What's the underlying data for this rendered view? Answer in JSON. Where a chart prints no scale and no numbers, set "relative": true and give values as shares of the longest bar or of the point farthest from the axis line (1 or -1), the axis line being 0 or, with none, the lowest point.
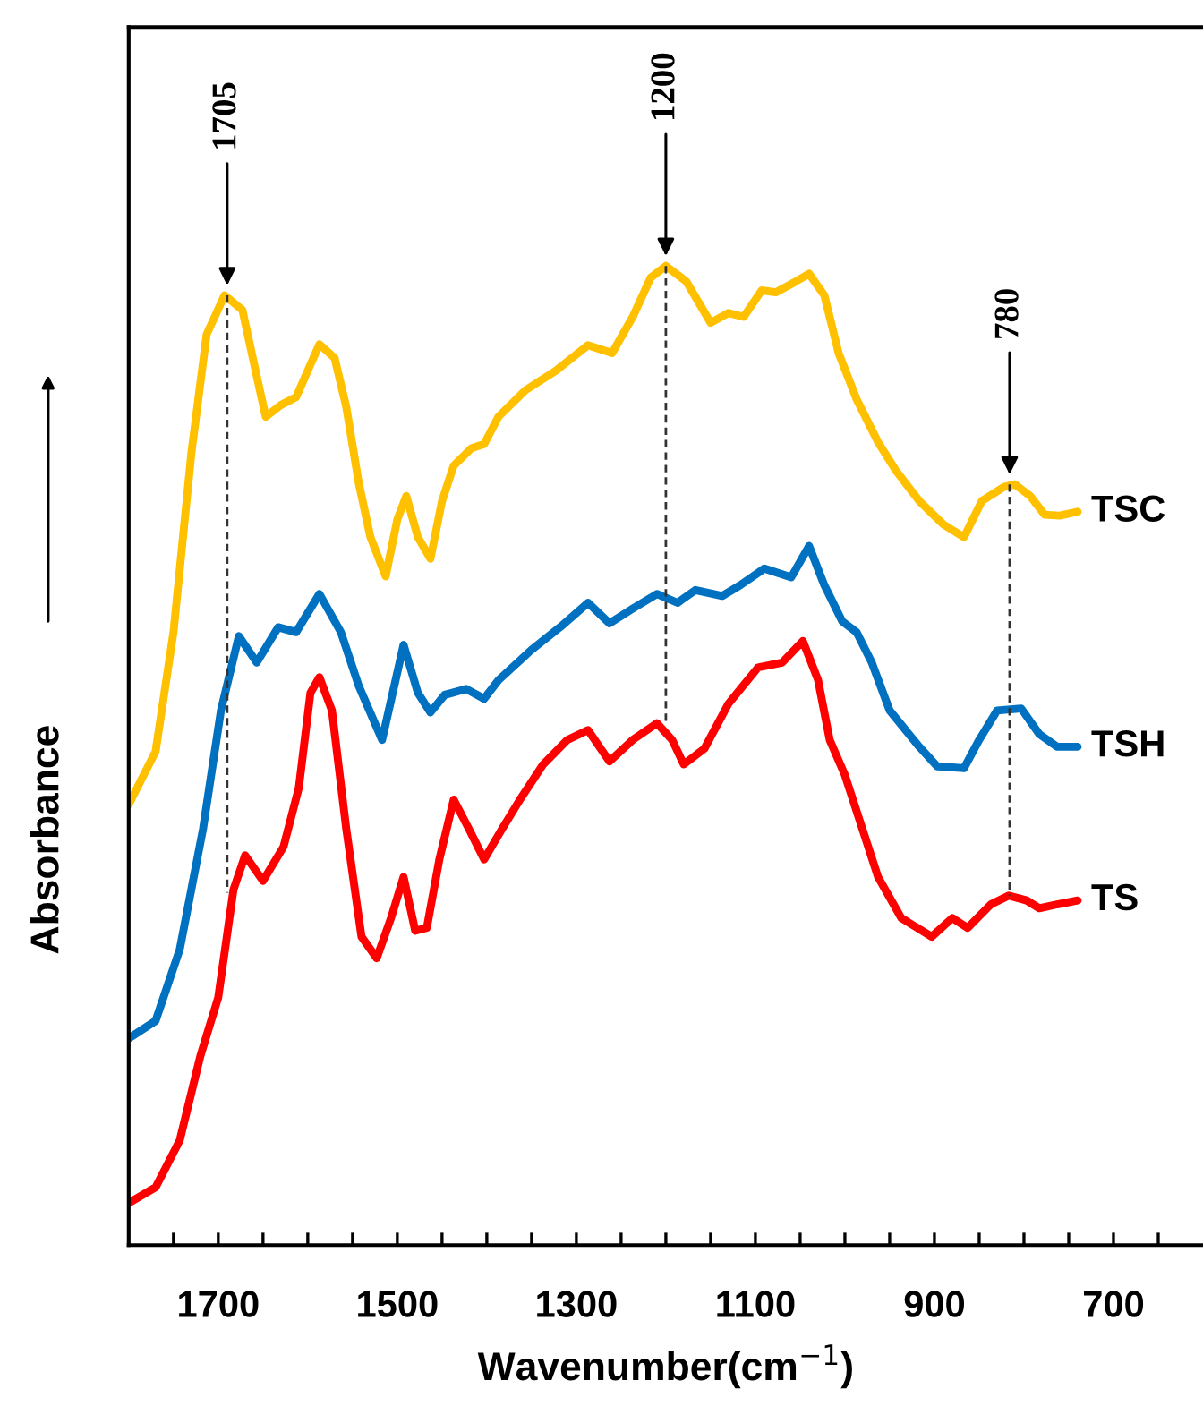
{
  "chart_data": {
    "type": "line",
    "relative": true,
    "xlabel": "Wavenumber(cm$^{−1}$)",
    "ylabel": "Absorbance",
    "xlim": [
      1800,
      600
    ],
    "xticks": [
      {
        "value": 1750,
        "label": null
      },
      {
        "value": 1700,
        "label": "1700"
      },
      {
        "value": 1650,
        "label": null
      },
      {
        "value": 1600,
        "label": null
      },
      {
        "value": 1550,
        "label": null
      },
      {
        "value": 1500,
        "label": "1500"
      },
      {
        "value": 1450,
        "label": null
      },
      {
        "value": 1400,
        "label": null
      },
      {
        "value": 1350,
        "label": null
      },
      {
        "value": 1300,
        "label": "1300"
      },
      {
        "value": 1250,
        "label": null
      },
      {
        "value": 1200,
        "label": null
      },
      {
        "value": 1150,
        "label": null
      },
      {
        "value": 1100,
        "label": "1100"
      },
      {
        "value": 1050,
        "label": null
      },
      {
        "value": 1000,
        "label": null
      },
      {
        "value": 950,
        "label": null
      },
      {
        "value": 900,
        "label": "900"
      },
      {
        "value": 850,
        "label": null
      },
      {
        "value": 800,
        "label": null
      },
      {
        "value": 750,
        "label": null
      },
      {
        "value": 700,
        "label": "700"
      },
      {
        "value": 650,
        "label": null
      }
    ],
    "tick_labels": "x",
    "grid": false,
    "legend": false,
    "marker": "none",
    "line_style": "solid",
    "annotations": [
      {
        "text": "1705",
        "x": 1690,
        "y": 0.97
      },
      {
        "text": "1200",
        "x": 1200,
        "y": 1.0
      },
      {
        "text": "780",
        "x": 816,
        "y": 0.777
      }
    ],
    "series": [
      {
        "name": "TSC",
        "color": "#ffc000",
        "x": [
          1800,
          1770,
          1750,
          1730,
          1713,
          1693,
          1673,
          1660,
          1647,
          1630,
          1613,
          1600,
          1587,
          1570,
          1557,
          1543,
          1530,
          1513,
          1500,
          1490,
          1477,
          1463,
          1450,
          1437,
          1417,
          1403,
          1387,
          1357,
          1323,
          1287,
          1260,
          1237,
          1217,
          1200,
          1177,
          1150,
          1130,
          1113,
          1093,
          1077,
          1057,
          1040,
          1023,
          1007,
          987,
          963,
          943,
          917,
          890,
          867,
          847,
          823,
          810,
          793,
          777,
          760,
          740
        ],
        "values": [
          0.45,
          0.504,
          0.626,
          0.809,
          0.93,
          0.97,
          0.955,
          0.9,
          0.846,
          0.858,
          0.866,
          0.893,
          0.92,
          0.906,
          0.856,
          0.778,
          0.723,
          0.683,
          0.741,
          0.765,
          0.723,
          0.701,
          0.76,
          0.796,
          0.814,
          0.818,
          0.846,
          0.873,
          0.893,
          0.919,
          0.911,
          0.948,
          0.988,
          1.0,
          0.984,
          0.942,
          0.952,
          0.948,
          0.975,
          0.973,
          0.983,
          0.992,
          0.97,
          0.911,
          0.864,
          0.82,
          0.791,
          0.76,
          0.736,
          0.723,
          0.76,
          0.774,
          0.777,
          0.765,
          0.746,
          0.745,
          0.749
        ]
      },
      {
        "name": "TSH",
        "color": "#0070c0",
        "x": [
          1800,
          1770,
          1743,
          1717,
          1697,
          1677,
          1657,
          1633,
          1613,
          1587,
          1563,
          1543,
          1517,
          1493,
          1477,
          1463,
          1447,
          1423,
          1403,
          1387,
          1350,
          1317,
          1287,
          1263,
          1237,
          1210,
          1187,
          1167,
          1137,
          1117,
          1090,
          1060,
          1040,
          1023,
          1003,
          987,
          970,
          950,
          917,
          897,
          867,
          850,
          830,
          803,
          783,
          763,
          740
        ],
        "values": [
          0.211,
          0.229,
          0.302,
          0.425,
          0.546,
          0.622,
          0.595,
          0.631,
          0.626,
          0.665,
          0.626,
          0.571,
          0.516,
          0.613,
          0.564,
          0.544,
          0.562,
          0.568,
          0.558,
          0.577,
          0.608,
          0.632,
          0.656,
          0.635,
          0.65,
          0.665,
          0.656,
          0.669,
          0.663,
          0.674,
          0.691,
          0.682,
          0.714,
          0.674,
          0.637,
          0.626,
          0.595,
          0.546,
          0.509,
          0.489,
          0.487,
          0.516,
          0.546,
          0.548,
          0.522,
          0.509,
          0.509
        ]
      },
      {
        "name": "TS",
        "color": "#ff0000",
        "x": [
          1800,
          1770,
          1743,
          1720,
          1700,
          1683,
          1670,
          1650,
          1627,
          1610,
          1597,
          1587,
          1573,
          1557,
          1540,
          1523,
          1507,
          1493,
          1480,
          1467,
          1453,
          1437,
          1420,
          1403,
          1383,
          1363,
          1337,
          1310,
          1287,
          1263,
          1237,
          1210,
          1193,
          1180,
          1157,
          1130,
          1097,
          1070,
          1047,
          1030,
          1017,
          1000,
          963,
          937,
          903,
          880,
          863,
          837,
          817,
          797,
          783,
          763,
          740
        ],
        "values": [
          0.043,
          0.059,
          0.107,
          0.193,
          0.253,
          0.363,
          0.398,
          0.372,
          0.407,
          0.467,
          0.564,
          0.58,
          0.546,
          0.425,
          0.315,
          0.293,
          0.334,
          0.376,
          0.321,
          0.324,
          0.394,
          0.455,
          0.425,
          0.394,
          0.425,
          0.455,
          0.491,
          0.516,
          0.526,
          0.494,
          0.516,
          0.533,
          0.516,
          0.491,
          0.507,
          0.553,
          0.59,
          0.595,
          0.617,
          0.577,
          0.516,
          0.48,
          0.376,
          0.334,
          0.315,
          0.334,
          0.324,
          0.348,
          0.357,
          0.352,
          0.344,
          0.348,
          0.352
        ]
      },
      {
        "type": "line",
        "line_style": "dashed",
        "color": "#333333",
        "x": [
          1690,
          1690
        ],
        "values": [
          0.97,
          0.36
        ]
      },
      {
        "type": "line",
        "line_style": "dashed",
        "color": "#333333",
        "x": [
          1200,
          1200
        ],
        "values": [
          1.0,
          0.533
        ]
      },
      {
        "type": "line",
        "line_style": "dashed",
        "color": "#333333",
        "x": [
          816,
          816
        ],
        "values": [
          0.777,
          0.357
        ]
      }
    ]
  }
}
